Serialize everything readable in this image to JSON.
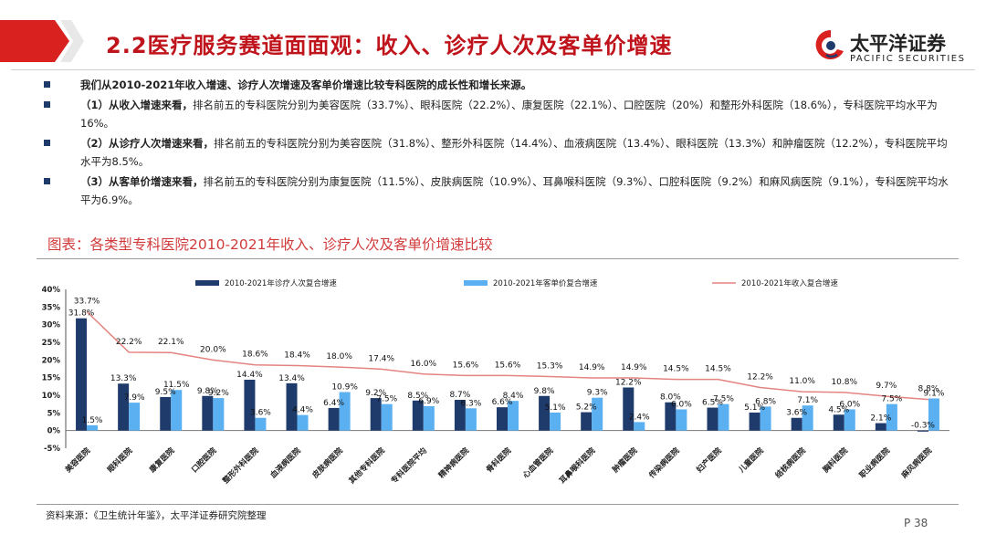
{
  "header": {
    "title": "2.2医疗服务赛道面面观：收入、诊疗人次及客单价增速",
    "logo_cn": "太平洋证券",
    "logo_en": "PACIFIC SECURITIES",
    "accent": "#c0141c"
  },
  "bullets": [
    {
      "lead": "",
      "text": "我们从2010-2021年收入增速、诊疗人次增速及客单价增速比较专科医院的成长性和增长来源。"
    },
    {
      "lead": "（1）从收入增速来看，",
      "text": "排名前五的专科医院分别为美容医院（33.7%）、眼科医院（22.2%）、康复医院（22.1%）、口腔医院（20%）和整形外科医院（18.6%），专科医院平均水平为16%。"
    },
    {
      "lead": "（2）从诊疗人次增速来看，",
      "text": "排名前五的专科医院分别为美容医院（31.8%）、整形外科医院（14.4%）、血液病医院（13.4%）、眼科医院（13.3%）和肿瘤医院（12.2%），专科医院平均水平为8.5%。"
    },
    {
      "lead": "（3）从客单价增速来看，",
      "text": "排名前五的专科医院分别为康复医院（11.5%）、皮肤病医院（10.9%）、耳鼻喉科医院（9.3%）、口腔科医院（9.2%）和麻风病医院（9.1%），专科医院平均水平为6.9%。"
    }
  ],
  "figure_title": "图表：各类型专科医院2010-2021年收入、诊疗人次及客单价增速比较",
  "source": "资料来源：《卫生统计年鉴》，太平洋证券研究院整理",
  "page": "P 38",
  "chart_data": {
    "type": "bar",
    "categories": [
      "美容医院",
      "眼科医院",
      "康复医院",
      "口腔医院",
      "整形外科医院",
      "血液病医院",
      "皮肤病医院",
      "其他专科医院",
      "专科医院平均",
      "精神病医院",
      "骨科医院",
      "心血管医院",
      "耳鼻喉科医院",
      "肿瘤医院",
      "传染病医院",
      "妇产医院",
      "儿童医院",
      "结核病医院",
      "胸科医院",
      "职业病医院",
      "麻风病医院"
    ],
    "series": [
      {
        "name": "2010-2021年诊疗人次复合增速",
        "kind": "bar",
        "color": "#1f3b6b",
        "values": [
          31.8,
          13.3,
          9.5,
          9.8,
          14.4,
          13.4,
          6.4,
          9.2,
          8.5,
          8.7,
          6.6,
          9.8,
          5.2,
          12.2,
          8.0,
          6.5,
          5.1,
          3.6,
          4.5,
          2.1,
          -0.3
        ],
        "labels": [
          "31.8%",
          "13.3%",
          "9.5%",
          "9.8%",
          "14.4%",
          "13.4%",
          "6.4%",
          "9.2%",
          "8.5%",
          "8.7%",
          "6.6%",
          "9.8%",
          "5.2%",
          "12.2%",
          "8.0%",
          "6.5%",
          "5.1%",
          "3.6%",
          "4.5%",
          "2.1%",
          "-0.3%"
        ]
      },
      {
        "name": "2010-2021年客单价复合增速",
        "kind": "bar",
        "color": "#5ab0f0",
        "values": [
          1.5,
          7.9,
          11.5,
          9.2,
          3.6,
          4.4,
          10.9,
          7.5,
          6.9,
          6.3,
          8.4,
          5.1,
          9.3,
          2.4,
          6.0,
          7.5,
          6.8,
          7.1,
          6.0,
          7.5,
          9.1
        ],
        "labels": [
          "1.5%",
          "7.9%",
          "11.5%",
          "9.2%",
          "3.6%",
          "4.4%",
          "10.9%",
          "7.5%",
          "6.9%",
          "6.3%",
          "8.4%",
          "5.1%",
          "9.3%",
          "2.4%",
          "6.0%",
          "7.5%",
          "6.8%",
          "7.1%",
          "6.0%",
          "7.5%",
          "9.1%"
        ]
      },
      {
        "name": "2010-2021年收入复合增速",
        "kind": "line",
        "color": "#e38480",
        "values": [
          33.7,
          22.2,
          22.1,
          20.0,
          18.6,
          18.4,
          18.0,
          17.4,
          16.0,
          15.6,
          15.6,
          15.3,
          14.9,
          14.9,
          14.5,
          14.5,
          12.2,
          11.0,
          10.8,
          9.7,
          8.8
        ],
        "labels": [
          "33.7%",
          "22.2%",
          "22.1%",
          "20.0%",
          "18.6%",
          "18.4%",
          "18.0%",
          "17.4%",
          "16.0%",
          "15.6%",
          "15.6%",
          "15.3%",
          "14.9%",
          "14.9%",
          "14.5%",
          "14.5%",
          "12.2%",
          "11.0%",
          "10.8%",
          "9.7%",
          "8.8%"
        ]
      }
    ],
    "y_ticks": [
      "-5%",
      "0%",
      "5%",
      "10%",
      "15%",
      "20%",
      "25%",
      "30%",
      "35%",
      "40%"
    ],
    "ylim": [
      -5,
      40
    ],
    "legend": "top",
    "grid": false
  }
}
